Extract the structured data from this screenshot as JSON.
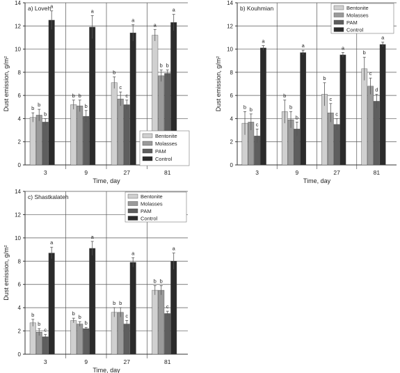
{
  "colors": {
    "Bentonite": "#d0d0d0",
    "Molasses": "#9a9a9a",
    "PAM": "#5e5e5e",
    "Control": "#2b2b2b",
    "axis": "#333333",
    "grid": "#555555",
    "error_bar": "#555555"
  },
  "chart_data": [
    {
      "type": "bar",
      "title": "a) Loveh",
      "xlabel": "Time, day",
      "ylabel": "Dust emission, g/m²",
      "ylim": [
        0,
        14
      ],
      "yticks": [
        0,
        2,
        4,
        6,
        8,
        10,
        12,
        14
      ],
      "categories": [
        "3",
        "9",
        "27",
        "81"
      ],
      "grid": true,
      "legend": "bottom-right",
      "series": [
        {
          "name": "Bentonite",
          "values": [
            4.1,
            5.2,
            7.1,
            11.2
          ],
          "errors": [
            0.4,
            0.4,
            0.5,
            0.5
          ],
          "letters": [
            "b",
            "b",
            "b",
            "a"
          ]
        },
        {
          "name": "Molasses",
          "values": [
            4.3,
            5.1,
            5.7,
            7.7
          ],
          "errors": [
            0.5,
            0.5,
            0.6,
            0.5
          ],
          "letters": [
            "b",
            "b",
            "c",
            "b"
          ]
        },
        {
          "name": "PAM",
          "values": [
            3.7,
            4.2,
            5.2,
            7.9
          ],
          "errors": [
            0.3,
            0.5,
            0.4,
            0.3
          ],
          "letters": [
            "b",
            "b",
            "c",
            "b"
          ]
        },
        {
          "name": "Control",
          "values": [
            12.5,
            11.9,
            11.4,
            12.3
          ],
          "errors": [
            0.8,
            1.0,
            0.7,
            0.7
          ],
          "letters": [
            "a",
            "a",
            "a",
            "a"
          ]
        }
      ]
    },
    {
      "type": "bar",
      "title": "b) Kouhmian",
      "xlabel": "Time, day",
      "ylabel": "Dust emission, g/m²",
      "ylim": [
        0,
        14
      ],
      "yticks": [
        0,
        2,
        4,
        6,
        8,
        10,
        12,
        14
      ],
      "categories": [
        "3",
        "9",
        "27",
        "81"
      ],
      "grid": true,
      "legend": "top-right",
      "series": [
        {
          "name": "Bentonite",
          "values": [
            3.6,
            4.6,
            6.1,
            8.3
          ],
          "errors": [
            1.0,
            1.0,
            1.0,
            1.0
          ],
          "letters": [
            "b",
            "b",
            "b",
            "b"
          ]
        },
        {
          "name": "Molasses",
          "values": [
            3.7,
            3.9,
            4.5,
            6.8
          ],
          "errors": [
            0.7,
            0.7,
            0.8,
            0.7
          ],
          "letters": [
            "b",
            "b",
            "c",
            "c"
          ]
        },
        {
          "name": "PAM",
          "values": [
            2.5,
            3.1,
            3.5,
            5.5
          ],
          "errors": [
            0.6,
            0.6,
            0.5,
            0.6
          ],
          "letters": [
            "c",
            "b",
            "c",
            "d"
          ]
        },
        {
          "name": "Control",
          "values": [
            10.1,
            9.7,
            9.5,
            10.4
          ],
          "errors": [
            0.2,
            0.2,
            0.2,
            0.2
          ],
          "letters": [
            "a",
            "a",
            "a",
            "a"
          ]
        }
      ]
    },
    {
      "type": "bar",
      "title": "c) Shastkalateh",
      "xlabel": "Time, day",
      "ylabel": "Dust emission, g/m²",
      "ylim": [
        0,
        14
      ],
      "yticks": [
        0,
        2,
        4,
        6,
        8,
        10,
        12,
        14
      ],
      "categories": [
        "3",
        "9",
        "27",
        "81"
      ],
      "grid": true,
      "legend": "top-right",
      "series": [
        {
          "name": "Bentonite",
          "values": [
            2.7,
            2.9,
            3.6,
            5.5
          ],
          "errors": [
            0.3,
            0.2,
            0.4,
            0.4
          ],
          "letters": [
            "b",
            "b",
            "b",
            "b"
          ]
        },
        {
          "name": "Molasses",
          "values": [
            1.9,
            2.6,
            3.6,
            5.5
          ],
          "errors": [
            0.3,
            0.2,
            0.4,
            0.4
          ],
          "letters": [
            "b",
            "b",
            "b",
            "b"
          ]
        },
        {
          "name": "PAM",
          "values": [
            1.5,
            2.2,
            2.6,
            3.5
          ],
          "errors": [
            0.2,
            0.1,
            0.3,
            0.2
          ],
          "letters": [
            "c",
            "b",
            "c",
            "c"
          ]
        },
        {
          "name": "Control",
          "values": [
            8.7,
            9.1,
            7.9,
            8.0
          ],
          "errors": [
            0.5,
            0.6,
            0.4,
            0.7
          ],
          "letters": [
            "a",
            "a",
            "a",
            "a"
          ]
        }
      ]
    }
  ]
}
